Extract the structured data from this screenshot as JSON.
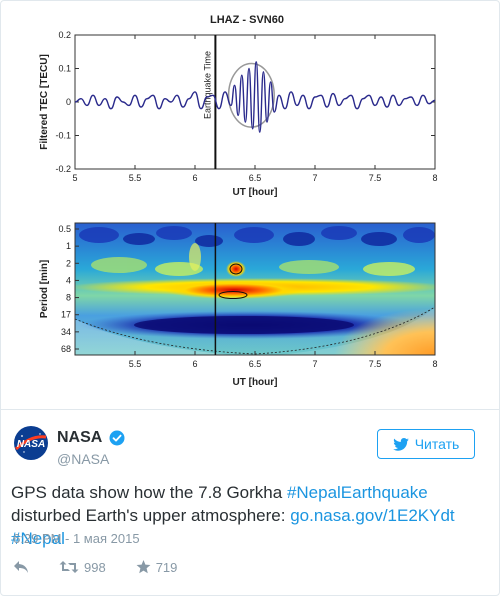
{
  "tweet": {
    "author_name": "NASA",
    "author_handle": "@NASA",
    "follow_label": "Читать",
    "text_before": "GPS data show how the 7.8 Gorkha ",
    "hashtag1": "#NepalEarthquake",
    "text_mid": " disturbed Earth's upper atmosphere: ",
    "link": "go.nasa.gov/1E2KYdt",
    "hashtag2": "#Nepal",
    "timestamp": "6:29 PM - 1 мая 2015",
    "retweets": "998",
    "favorites": "719",
    "accent_color": "#1da1f2",
    "icons": [
      "nasa-logo-icon",
      "verified-badge-icon",
      "twitter-bird-icon",
      "reply-icon",
      "retweet-icon",
      "favorite-star-icon"
    ]
  },
  "chart_data": [
    {
      "type": "line",
      "title": "LHAZ - SVN60",
      "xlabel": "UT [hour]",
      "ylabel": "Filtered TEC [TECU]",
      "xlim": [
        5,
        8
      ],
      "ylim": [
        -0.2,
        0.2
      ],
      "xticks": [
        "5",
        "5.5",
        "6",
        "6.5",
        "7",
        "7.5",
        "8"
      ],
      "yticks": [
        "0.2",
        "0.1",
        "0",
        "-0.1",
        "-0.2"
      ],
      "annotation": "Earthquake Time",
      "event_x": 6.17,
      "highlight_ellipse": {
        "x_center": 6.47,
        "y_center": 0.02,
        "x_halfwidth": 0.19,
        "y_halfwidth": 0.095
      },
      "series": [
        {
          "x": [
            5.0,
            5.05,
            5.1,
            5.15,
            5.2,
            5.25,
            5.3,
            5.35,
            5.4,
            5.45,
            5.5,
            5.55,
            5.6,
            5.65,
            5.7,
            5.75,
            5.8,
            5.85,
            5.9,
            5.95,
            6.0,
            6.05,
            6.1,
            6.15,
            6.2,
            6.25,
            6.3,
            6.33,
            6.36,
            6.39,
            6.42,
            6.45,
            6.48,
            6.51,
            6.54,
            6.57,
            6.6,
            6.63,
            6.66,
            6.7,
            6.75,
            6.8,
            6.85,
            6.9,
            6.95,
            7.0,
            7.05,
            7.1,
            7.15,
            7.2,
            7.25,
            7.3,
            7.35,
            7.4,
            7.45,
            7.5,
            7.55,
            7.6,
            7.65,
            7.7,
            7.75,
            7.8,
            7.85,
            7.9,
            7.95,
            8.0
          ],
          "y": [
            0.0,
            0.01,
            -0.01,
            0.02,
            -0.01,
            0.01,
            -0.02,
            0.015,
            0.0,
            -0.01,
            0.02,
            -0.015,
            0.01,
            0.02,
            -0.02,
            0.01,
            0.0,
            0.02,
            -0.015,
            0.01,
            0.03,
            -0.02,
            0.015,
            0.02,
            -0.02,
            0.03,
            -0.01,
            0.05,
            -0.04,
            0.08,
            -0.06,
            0.1,
            -0.08,
            0.12,
            -0.09,
            0.09,
            -0.06,
            0.06,
            -0.03,
            0.02,
            -0.02,
            0.03,
            -0.01,
            0.02,
            -0.02,
            0.015,
            0.02,
            -0.015,
            0.025,
            -0.01,
            0.01,
            0.02,
            -0.02,
            0.01,
            0.02,
            -0.01,
            0.015,
            -0.015,
            0.02,
            -0.01,
            0.01,
            0.015,
            -0.01,
            0.02,
            -0.005,
            0.005
          ]
        }
      ]
    },
    {
      "type": "heatmap",
      "xlabel": "UT [hour]",
      "ylabel": "Period [min]",
      "xlim": [
        5,
        8
      ],
      "xticks": [
        "5.5",
        "6",
        "6.5",
        "7",
        "7.5",
        "8"
      ],
      "yticks": [
        "0.5",
        "1",
        "2",
        "4",
        "8",
        "17",
        "34",
        "68"
      ],
      "event_x": 6.17
    }
  ]
}
